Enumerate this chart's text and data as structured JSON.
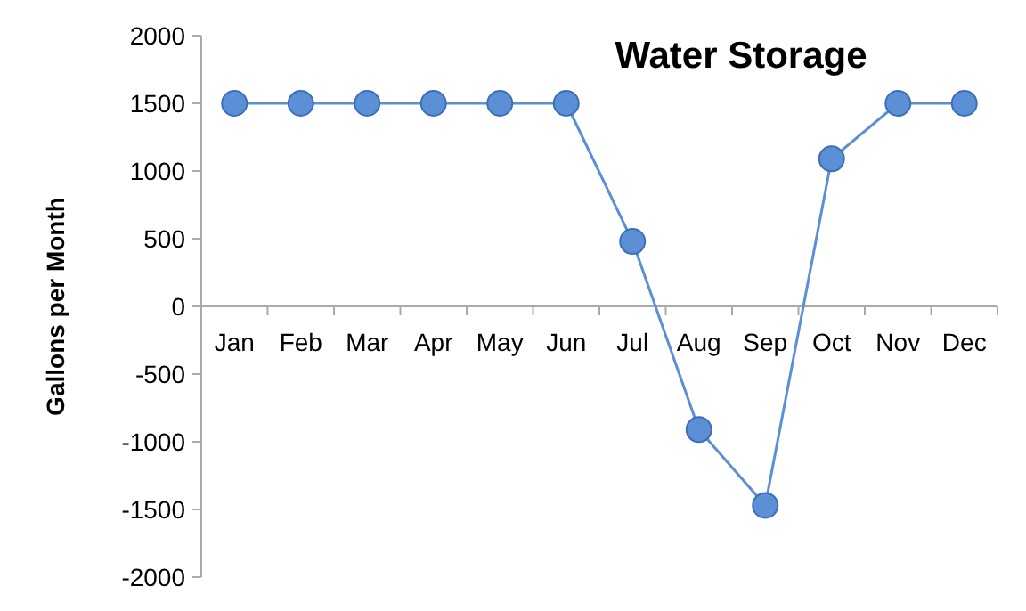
{
  "chart_data": {
    "type": "line",
    "title": "Water Storage",
    "ylabel": "Gallons per Month",
    "categories": [
      "Jan",
      "Feb",
      "Mar",
      "Apr",
      "May",
      "Jun",
      "Jul",
      "Aug",
      "Sep",
      "Oct",
      "Nov",
      "Dec"
    ],
    "series": [
      {
        "color": "#5b8fd6",
        "values": [
          1500,
          1500,
          1500,
          1500,
          1500,
          1500,
          480,
          -910,
          -1470,
          1090,
          1500,
          1500
        ]
      }
    ],
    "ylim": [
      -2000,
      2000
    ],
    "yticks": [
      -2000,
      -1500,
      -1000,
      -500,
      0,
      500,
      1000,
      1500,
      2000
    ],
    "marker": "circle",
    "line_style": "solid",
    "grid": false
  }
}
